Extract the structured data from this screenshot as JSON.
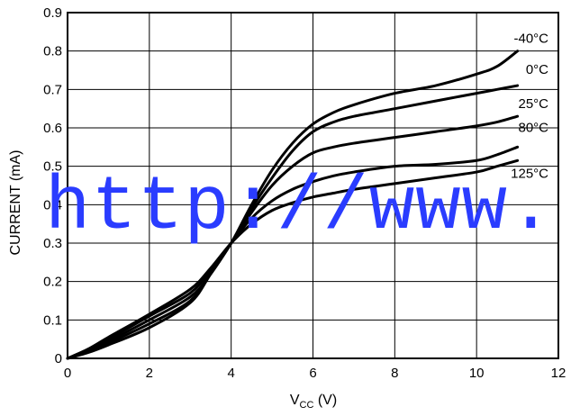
{
  "chart_data": {
    "type": "line",
    "xlabel": "V",
    "xlabel_sub": "CC",
    "xlabel_unit": " (V)",
    "ylabel": "CURRENT (mA)",
    "xlim": [
      0,
      12
    ],
    "ylim": [
      0,
      0.9
    ],
    "xticks": [
      "0",
      "2",
      "4",
      "6",
      "8",
      "10",
      "12"
    ],
    "yticks": [
      "0",
      "0.1",
      "0.2",
      "0.3",
      "0.4",
      "0.5",
      "0.6",
      "0.7",
      "0.8",
      "0.9"
    ],
    "grid": true,
    "series": [
      {
        "name": "-40°C",
        "x": [
          0,
          0.5,
          1,
          2,
          3,
          3.5,
          4,
          4.5,
          5,
          5.5,
          6,
          6.5,
          7,
          8,
          9,
          10,
          10.5,
          11
        ],
        "y": [
          0,
          0.015,
          0.035,
          0.08,
          0.145,
          0.22,
          0.3,
          0.4,
          0.49,
          0.56,
          0.61,
          0.64,
          0.66,
          0.69,
          0.71,
          0.74,
          0.76,
          0.8
        ]
      },
      {
        "name": "0°C",
        "x": [
          0,
          0.5,
          1,
          2,
          3,
          3.5,
          4,
          4.5,
          5,
          5.5,
          6,
          6.5,
          7,
          8,
          9,
          10,
          10.5,
          11
        ],
        "y": [
          0,
          0.017,
          0.04,
          0.09,
          0.15,
          0.22,
          0.3,
          0.39,
          0.47,
          0.54,
          0.59,
          0.615,
          0.63,
          0.65,
          0.67,
          0.69,
          0.7,
          0.71
        ]
      },
      {
        "name": "25°C",
        "x": [
          0,
          0.5,
          1,
          2,
          3,
          3.5,
          4,
          4.5,
          5,
          5.5,
          6,
          6.5,
          7,
          8,
          9,
          10,
          10.5,
          11
        ],
        "y": [
          0,
          0.02,
          0.045,
          0.1,
          0.16,
          0.22,
          0.3,
          0.38,
          0.45,
          0.5,
          0.535,
          0.55,
          0.56,
          0.575,
          0.59,
          0.605,
          0.615,
          0.63
        ]
      },
      {
        "name": "80°C",
        "x": [
          0,
          0.5,
          1,
          2,
          3,
          3.5,
          4,
          4.5,
          5,
          5.5,
          6,
          6.5,
          7,
          8,
          9,
          10,
          10.5,
          11
        ],
        "y": [
          0,
          0.022,
          0.05,
          0.11,
          0.17,
          0.23,
          0.3,
          0.365,
          0.41,
          0.44,
          0.46,
          0.475,
          0.485,
          0.5,
          0.505,
          0.515,
          0.53,
          0.55
        ]
      },
      {
        "name": "125°C",
        "x": [
          0,
          0.5,
          1,
          2,
          3,
          3.5,
          4,
          4.5,
          5,
          5.5,
          6,
          6.5,
          7,
          8,
          9,
          10,
          10.5,
          11
        ],
        "y": [
          0,
          0.024,
          0.055,
          0.115,
          0.18,
          0.235,
          0.3,
          0.35,
          0.385,
          0.405,
          0.42,
          0.43,
          0.44,
          0.455,
          0.47,
          0.485,
          0.5,
          0.515
        ]
      }
    ]
  },
  "watermark": "http://www."
}
